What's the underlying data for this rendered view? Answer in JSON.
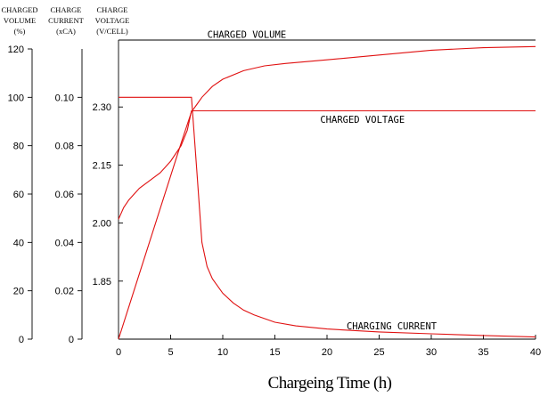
{
  "chart_data": {
    "type": "line",
    "xlabel": "Chargeing Time (h)",
    "xlim": [
      0,
      40
    ],
    "x_ticks": [
      "0",
      "5",
      "10",
      "15",
      "20",
      "25",
      "30",
      "35",
      "40"
    ],
    "axes": [
      {
        "id": "volume",
        "header": [
          "CHARGED",
          "VOLUME",
          "(%)"
        ],
        "ylim": [
          0,
          120
        ],
        "ticks": [
          {
            "value": 0,
            "label": "0"
          },
          {
            "value": 20,
            "label": "20"
          },
          {
            "value": 40,
            "label": "40"
          },
          {
            "value": 60,
            "label": "60"
          },
          {
            "value": 80,
            "label": "80"
          },
          {
            "value": 100,
            "label": "100"
          },
          {
            "value": 120,
            "label": "120"
          }
        ]
      },
      {
        "id": "current",
        "header": [
          "CHARGE",
          "CURRENT",
          "(xCA)"
        ],
        "ylim": [
          0,
          0.12
        ],
        "ticks": [
          {
            "value": 0,
            "label": "0"
          },
          {
            "value": 0.02,
            "label": "0.02"
          },
          {
            "value": 0.04,
            "label": "0.04"
          },
          {
            "value": 0.06,
            "label": "0.06"
          },
          {
            "value": 0.08,
            "label": "0.08"
          },
          {
            "value": 0.1,
            "label": "0.10"
          }
        ]
      },
      {
        "id": "voltage",
        "header": [
          "CHARGE",
          "VOLTAGE",
          "(V/CELL)"
        ],
        "ylim": [
          1.7,
          2.45
        ],
        "ticks": [
          {
            "value": 1.85,
            "label": "1.85"
          },
          {
            "value": 2.0,
            "label": "2.00"
          },
          {
            "value": 2.15,
            "label": "2.15"
          },
          {
            "value": 2.3,
            "label": "2.30"
          }
        ]
      }
    ],
    "series": [
      {
        "name": "CHARGED VOLUME",
        "axis": "volume",
        "color": "#e01010",
        "x": [
          0,
          1,
          2,
          4,
          6,
          7,
          7.5,
          8,
          9,
          10,
          12,
          14,
          16,
          20,
          25,
          30,
          35,
          40
        ],
        "y": [
          0,
          13.5,
          27,
          54,
          81,
          94,
          97,
          100,
          104.5,
          107.5,
          111,
          113,
          114,
          115.5,
          117.5,
          119.5,
          120.5,
          121
        ]
      },
      {
        "name": "CHARGED VOLTAGE",
        "axis": "voltage",
        "color": "#e01010",
        "x": [
          0,
          0.5,
          1,
          2,
          3,
          4,
          5,
          6,
          6.6,
          7,
          10,
          15,
          20,
          25,
          30,
          35,
          40
        ],
        "y": [
          2.01,
          2.04,
          2.06,
          2.09,
          2.11,
          2.13,
          2.16,
          2.2,
          2.24,
          2.29,
          2.29,
          2.29,
          2.29,
          2.29,
          2.29,
          2.29,
          2.29
        ]
      },
      {
        "name": "CHARGING CURRENT",
        "axis": "current",
        "color": "#e01010",
        "x": [
          0,
          7,
          7.5,
          8,
          8.5,
          9,
          10,
          11,
          12,
          13,
          14,
          15,
          17,
          20,
          25,
          30,
          35,
          40
        ],
        "y": [
          0.1,
          0.1,
          0.07,
          0.04,
          0.03,
          0.025,
          0.019,
          0.015,
          0.012,
          0.01,
          0.0085,
          0.007,
          0.0055,
          0.0042,
          0.003,
          0.0022,
          0.0015,
          0.0009
        ]
      }
    ],
    "annotations": [
      {
        "text": "CHARGED VOLUME",
        "series": "CHARGED VOLUME",
        "x": 12.3,
        "y": 126
      },
      {
        "text": "CHARGED VOLTAGE",
        "series": "CHARGED VOLTAGE",
        "x": 23.4,
        "y": 2.268
      },
      {
        "text": "CHARGING CURRENT",
        "series": "CHARGING CURRENT",
        "x": 26.2,
        "y": 0.0055
      }
    ]
  }
}
